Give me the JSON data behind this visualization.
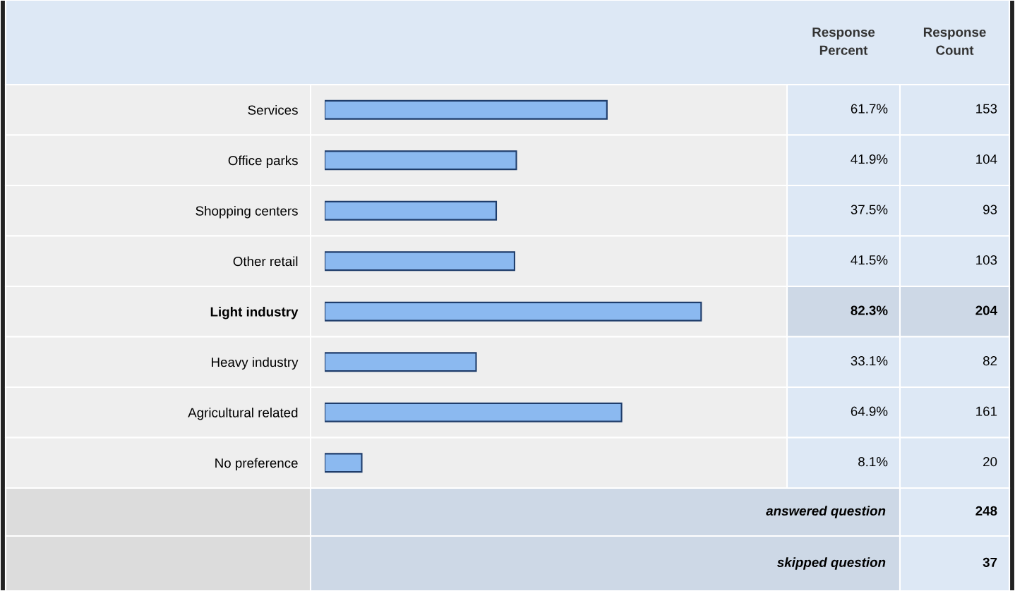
{
  "chart_data": {
    "type": "bar",
    "orientation": "horizontal",
    "categories": [
      "Services",
      "Office parks",
      "Shopping centers",
      "Other retail",
      "Light industry",
      "Heavy industry",
      "Agricultural related",
      "No preference"
    ],
    "values": [
      61.7,
      41.9,
      37.5,
      41.5,
      82.3,
      33.1,
      64.9,
      8.1
    ],
    "value_labels": [
      "61.7%",
      "41.9%",
      "37.5%",
      "41.5%",
      "82.3%",
      "33.1%",
      "64.9%",
      "8.1%"
    ],
    "color": "#8bb9f0",
    "grid": false,
    "annotations": [
      "Response\nPercent",
      "Response\nCount",
      "153",
      "104",
      "93",
      "103",
      "204",
      "82",
      "161",
      "20",
      "answered question",
      "248",
      "skipped question",
      "37"
    ]
  }
}
